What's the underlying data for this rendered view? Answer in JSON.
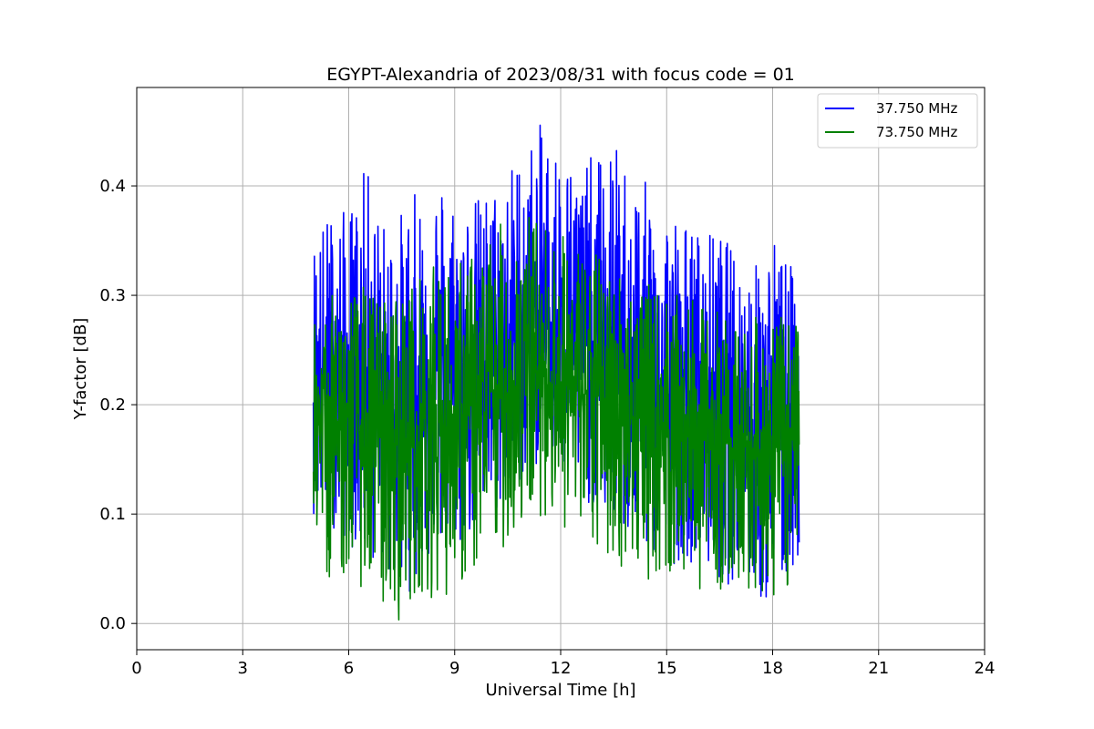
{
  "chart_data": {
    "type": "line",
    "title": "EGYPT-Alexandria of 2023/08/31 with focus code = 01",
    "xlabel": "Universal Time [h]",
    "ylabel": "Y-factor [dB]",
    "xlim": [
      0,
      24
    ],
    "ylim": [
      -0.024,
      0.49
    ],
    "xticks": [
      "0",
      "3",
      "6",
      "9",
      "12",
      "15",
      "18",
      "21",
      "24"
    ],
    "xtick_values": [
      0,
      3,
      6,
      9,
      12,
      15,
      18,
      21,
      24
    ],
    "yticks": [
      "0.0",
      "0.1",
      "0.2",
      "0.3",
      "0.4"
    ],
    "ytick_values": [
      0.0,
      0.1,
      0.2,
      0.3,
      0.4
    ],
    "grid": true,
    "legend_position": "top-right",
    "series": [
      {
        "name": "37.750 MHz",
        "color": "#0000ff",
        "x": [
          5.0,
          5.5,
          6.0,
          6.5,
          7.0,
          7.5,
          8.0,
          8.5,
          9.0,
          9.5,
          10.0,
          10.5,
          11.0,
          11.5,
          12.0,
          12.5,
          13.0,
          13.5,
          14.0,
          14.5,
          15.0,
          15.5,
          16.0,
          16.5,
          17.0,
          17.5,
          18.0,
          18.5,
          18.75
        ],
        "upper": [
          0.36,
          0.38,
          0.38,
          0.42,
          0.37,
          0.38,
          0.4,
          0.42,
          0.4,
          0.39,
          0.4,
          0.42,
          0.44,
          0.46,
          0.44,
          0.42,
          0.43,
          0.44,
          0.42,
          0.4,
          0.39,
          0.37,
          0.36,
          0.36,
          0.34,
          0.33,
          0.36,
          0.33,
          0.3
        ],
        "lower": [
          0.1,
          0.09,
          0.07,
          0.06,
          0.05,
          0.02,
          0.04,
          0.07,
          0.06,
          0.08,
          0.09,
          0.11,
          0.13,
          0.15,
          0.13,
          0.12,
          0.1,
          0.09,
          0.07,
          0.06,
          0.05,
          0.06,
          0.05,
          0.04,
          0.03,
          0.02,
          0.01,
          0.04,
          0.06
        ],
        "center": [
          0.22,
          0.22,
          0.21,
          0.21,
          0.2,
          0.2,
          0.21,
          0.22,
          0.22,
          0.23,
          0.24,
          0.25,
          0.27,
          0.28,
          0.27,
          0.26,
          0.25,
          0.24,
          0.23,
          0.22,
          0.21,
          0.21,
          0.2,
          0.2,
          0.19,
          0.19,
          0.19,
          0.19,
          0.19
        ]
      },
      {
        "name": "73.750 MHz",
        "color": "#008000",
        "x": [
          5.0,
          5.5,
          6.0,
          6.5,
          7.0,
          7.5,
          8.0,
          8.5,
          9.0,
          9.5,
          10.0,
          10.5,
          11.0,
          11.5,
          12.0,
          12.5,
          13.0,
          13.5,
          14.0,
          14.5,
          15.0,
          15.5,
          16.0,
          16.5,
          17.0,
          17.5,
          18.0,
          18.5,
          18.75
        ],
        "upper": [
          0.29,
          0.3,
          0.31,
          0.31,
          0.3,
          0.31,
          0.32,
          0.33,
          0.33,
          0.34,
          0.36,
          0.37,
          0.38,
          0.37,
          0.36,
          0.35,
          0.34,
          0.33,
          0.32,
          0.31,
          0.3,
          0.3,
          0.29,
          0.29,
          0.28,
          0.28,
          0.28,
          0.28,
          0.28
        ],
        "lower": [
          0.05,
          0.04,
          0.04,
          0.03,
          0.01,
          0.0,
          0.03,
          0.02,
          0.03,
          0.04,
          0.06,
          0.07,
          0.09,
          0.1,
          0.09,
          0.07,
          0.06,
          0.05,
          0.05,
          0.04,
          0.04,
          0.04,
          0.03,
          0.03,
          0.03,
          0.03,
          0.02,
          0.03,
          0.03
        ],
        "center": [
          0.18,
          0.18,
          0.18,
          0.17,
          0.17,
          0.16,
          0.17,
          0.18,
          0.18,
          0.19,
          0.2,
          0.21,
          0.23,
          0.23,
          0.22,
          0.21,
          0.21,
          0.2,
          0.19,
          0.18,
          0.18,
          0.17,
          0.17,
          0.17,
          0.16,
          0.16,
          0.16,
          0.16,
          0.16
        ]
      }
    ]
  }
}
